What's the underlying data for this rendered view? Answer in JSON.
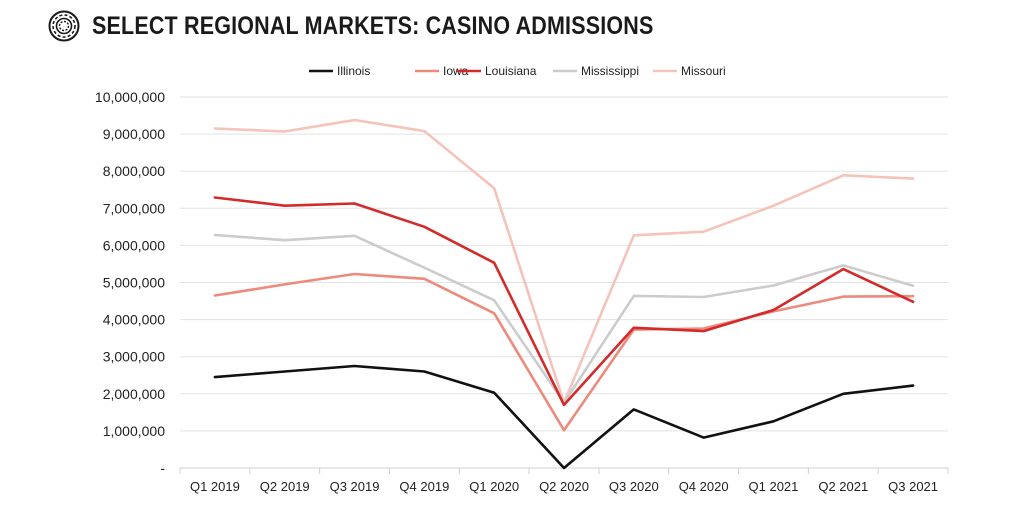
{
  "header": {
    "title": "SELECT REGIONAL MARKETS: CASINO ADMISSIONS",
    "logo_icon": "casino-chip-icon"
  },
  "chart_data": {
    "type": "line",
    "title": "SELECT REGIONAL MARKETS: CASINO ADMISSIONS",
    "xlabel": "",
    "ylabel": "",
    "ylim": [
      0,
      10000000
    ],
    "yticks": [
      0,
      1000000,
      2000000,
      3000000,
      4000000,
      5000000,
      6000000,
      7000000,
      8000000,
      9000000,
      10000000
    ],
    "ytick_labels": [
      "-",
      "1,000,000",
      "2,000,000",
      "3,000,000",
      "4,000,000",
      "5,000,000",
      "6,000,000",
      "7,000,000",
      "8,000,000",
      "9,000,000",
      "10,000,000"
    ],
    "grid": true,
    "legend_position": "top-center",
    "categories": [
      "Q1 2019",
      "Q2 2019",
      "Q3 2019",
      "Q4 2019",
      "Q1 2020",
      "Q2 2020",
      "Q3 2020",
      "Q4 2020",
      "Q1 2021",
      "Q2 2021",
      "Q3 2021"
    ],
    "series": [
      {
        "name": "Illinois",
        "color": "#111111",
        "values": [
          2450000,
          2600000,
          2750000,
          2600000,
          2030000,
          0,
          1580000,
          820000,
          1260000,
          2000000,
          2220000
        ]
      },
      {
        "name": "Iowa",
        "color": "#ec8b7d",
        "values": [
          4650000,
          4950000,
          5230000,
          5100000,
          4170000,
          1020000,
          3730000,
          3760000,
          4220000,
          4620000,
          4630000
        ]
      },
      {
        "name": "Louisiana",
        "color": "#d42a2a",
        "values": [
          7290000,
          7070000,
          7130000,
          6500000,
          5530000,
          1700000,
          3780000,
          3690000,
          4260000,
          5360000,
          4480000
        ]
      },
      {
        "name": "Mississippi",
        "color": "#cccccc",
        "values": [
          6280000,
          6140000,
          6260000,
          5400000,
          4520000,
          1760000,
          4640000,
          4610000,
          4920000,
          5460000,
          4910000
        ]
      },
      {
        "name": "Missouri",
        "color": "#f5c3b9",
        "values": [
          9150000,
          9070000,
          9380000,
          9080000,
          7540000,
          1760000,
          6270000,
          6370000,
          7070000,
          7890000,
          7800000
        ]
      }
    ]
  }
}
